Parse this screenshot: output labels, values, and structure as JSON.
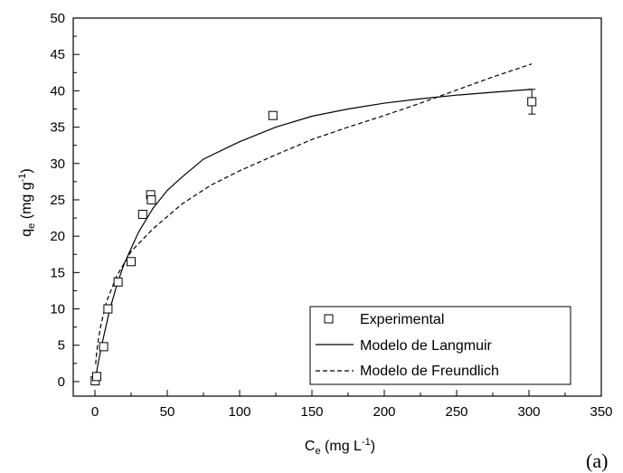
{
  "chart_data": {
    "type": "scatter",
    "panel_label": "(a)",
    "xlabel": {
      "main": "C",
      "sub": "e",
      "units_pre": " (mg L",
      "units_sup": "-1",
      "units_post": ")"
    },
    "ylabel": {
      "main": "q",
      "sub": "e",
      "units_pre": " (mg g",
      "units_sup": "-1",
      "units_post": ")"
    },
    "xlim": [
      -15,
      350
    ],
    "ylim": [
      -2,
      50
    ],
    "xticks": [
      0,
      50,
      100,
      150,
      200,
      250,
      300,
      350
    ],
    "yticks": [
      0,
      5,
      10,
      15,
      20,
      25,
      30,
      35,
      40,
      45,
      50
    ],
    "legend": {
      "position": "bottom-right",
      "entries": [
        "Experimental",
        "Modelo de Langmuir",
        "Modelo de Freundlich"
      ]
    },
    "series": [
      {
        "name": "Experimental",
        "style": "open-square",
        "points": [
          {
            "x": 0.2,
            "y": 0.1,
            "err": 0.3
          },
          {
            "x": 1.2,
            "y": 0.7,
            "err": 0.3
          },
          {
            "x": 6,
            "y": 4.8,
            "err": 0.4
          },
          {
            "x": 9,
            "y": 10.0,
            "err": 0.4
          },
          {
            "x": 16,
            "y": 13.7,
            "err": 0.4
          },
          {
            "x": 25,
            "y": 16.5,
            "err": 0.4
          },
          {
            "x": 33,
            "y": 23.0,
            "err": 0.4
          },
          {
            "x": 38.5,
            "y": 25.7,
            "err": 0.4
          },
          {
            "x": 39,
            "y": 25.0,
            "err": 0.4
          },
          {
            "x": 123,
            "y": 36.6,
            "err": 0.4
          },
          {
            "x": 302,
            "y": 38.5,
            "err": 1.7
          }
        ]
      },
      {
        "name": "Modelo de Langmuir",
        "style": "solid",
        "points": [
          {
            "x": 0,
            "y": 0
          },
          {
            "x": 2,
            "y": 2.3
          },
          {
            "x": 5,
            "y": 5.3
          },
          {
            "x": 10,
            "y": 9.7
          },
          {
            "x": 15,
            "y": 13.2
          },
          {
            "x": 20,
            "y": 16.1
          },
          {
            "x": 30,
            "y": 20.5
          },
          {
            "x": 40,
            "y": 23.8
          },
          {
            "x": 50,
            "y": 26.3
          },
          {
            "x": 60,
            "y": 28.1
          },
          {
            "x": 75,
            "y": 30.6
          },
          {
            "x": 100,
            "y": 33.0
          },
          {
            "x": 125,
            "y": 35.0
          },
          {
            "x": 150,
            "y": 36.5
          },
          {
            "x": 175,
            "y": 37.5
          },
          {
            "x": 200,
            "y": 38.3
          },
          {
            "x": 225,
            "y": 38.9
          },
          {
            "x": 250,
            "y": 39.4
          },
          {
            "x": 275,
            "y": 39.8
          },
          {
            "x": 302,
            "y": 40.2
          }
        ]
      },
      {
        "name": "Modelo de Freundlich",
        "style": "dashed",
        "points": [
          {
            "x": 0.5,
            "y": 2.4
          },
          {
            "x": 1,
            "y": 3.6
          },
          {
            "x": 2,
            "y": 5.3
          },
          {
            "x": 4,
            "y": 7.7
          },
          {
            "x": 8,
            "y": 11.0
          },
          {
            "x": 15,
            "y": 14.5
          },
          {
            "x": 25,
            "y": 17.9
          },
          {
            "x": 40,
            "y": 21.0
          },
          {
            "x": 60,
            "y": 24.4
          },
          {
            "x": 80,
            "y": 27.0
          },
          {
            "x": 100,
            "y": 29.0
          },
          {
            "x": 125,
            "y": 31.2
          },
          {
            "x": 150,
            "y": 33.3
          },
          {
            "x": 175,
            "y": 35.0
          },
          {
            "x": 200,
            "y": 36.6
          },
          {
            "x": 225,
            "y": 38.3
          },
          {
            "x": 250,
            "y": 40.1
          },
          {
            "x": 275,
            "y": 41.9
          },
          {
            "x": 302,
            "y": 43.7
          }
        ]
      }
    ]
  }
}
